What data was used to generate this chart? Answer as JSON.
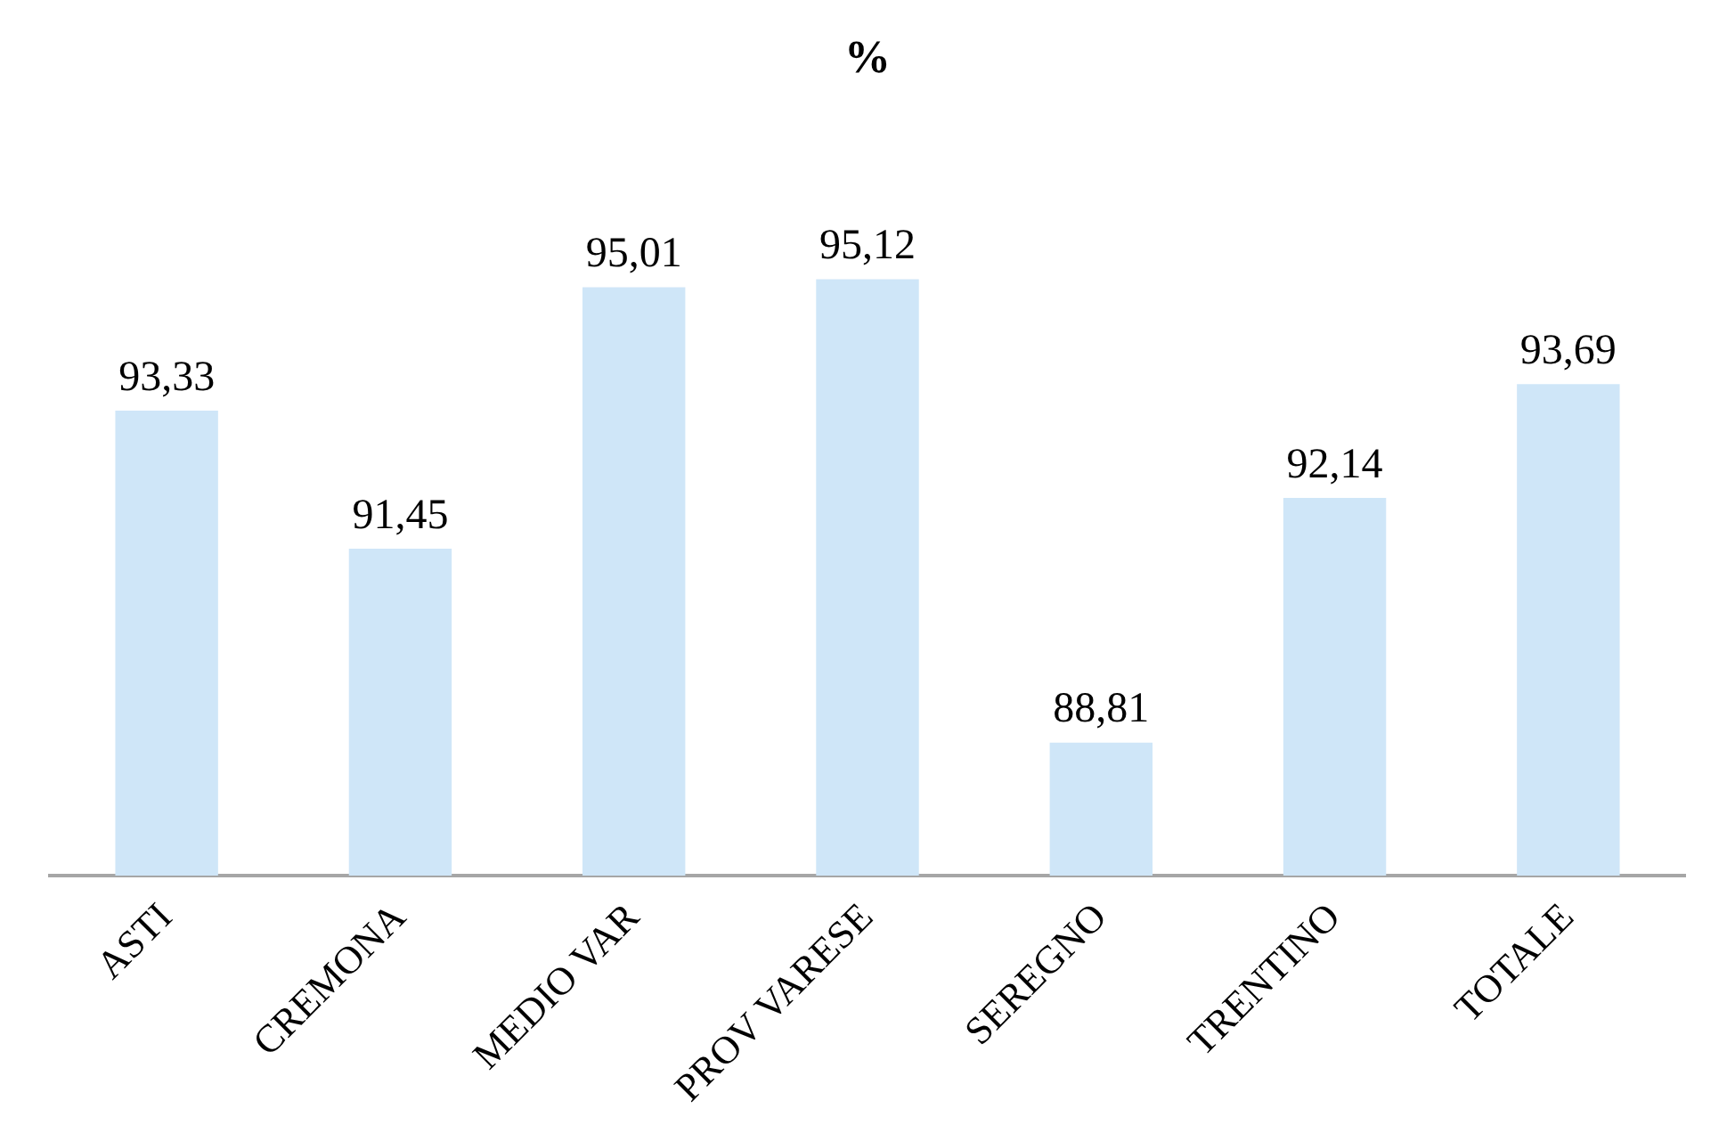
{
  "chart_data": {
    "type": "bar",
    "title": "%",
    "categories": [
      "ASTI",
      "CREMONA",
      "MEDIO VAR",
      "PROV VARESE",
      "SEREGNO",
      "TRENTINO",
      "TOTALE"
    ],
    "values": [
      93.33,
      91.45,
      95.01,
      95.12,
      88.81,
      92.14,
      93.69
    ],
    "value_labels": [
      "93,33",
      "91,45",
      "95,01",
      "95,12",
      "88,81",
      "92,14",
      "93,69"
    ],
    "color": "#cfe6f8",
    "tick_labels": "x",
    "grid": false,
    "legend": false
  }
}
